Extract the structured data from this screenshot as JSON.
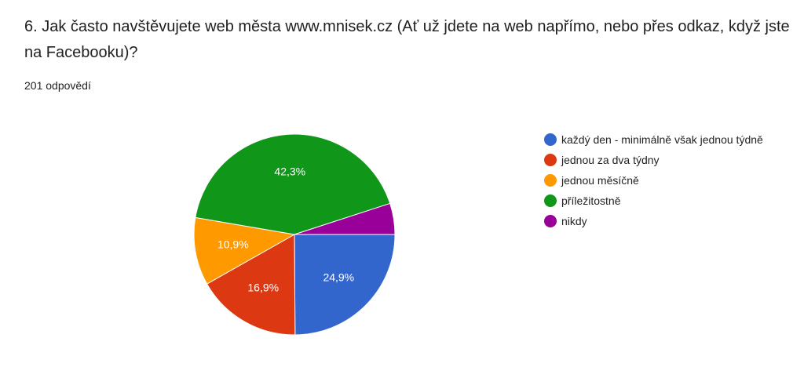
{
  "chart_data": {
    "type": "pie",
    "title": "6. Jak často navštěvujete web města www.mnisek.cz (Ať už jdete na web napřímo, nebo přes odkaz, když jste na Facebooku)?",
    "subtitle": "201 odpovědí",
    "categories": [
      "každý den - minimálně však jednou týdně",
      "jednou za dva týdny",
      "jednou měsíčně",
      "příležitostně",
      "nikdy"
    ],
    "values": [
      24.9,
      16.9,
      10.9,
      42.3,
      5.0
    ],
    "value_labels": [
      "24,9%",
      "16,9%",
      "10,9%",
      "42,3%",
      null
    ],
    "colors": [
      "#3366cc",
      "#dc3912",
      "#ff9900",
      "#109618",
      "#990099"
    ],
    "legend": "right"
  }
}
